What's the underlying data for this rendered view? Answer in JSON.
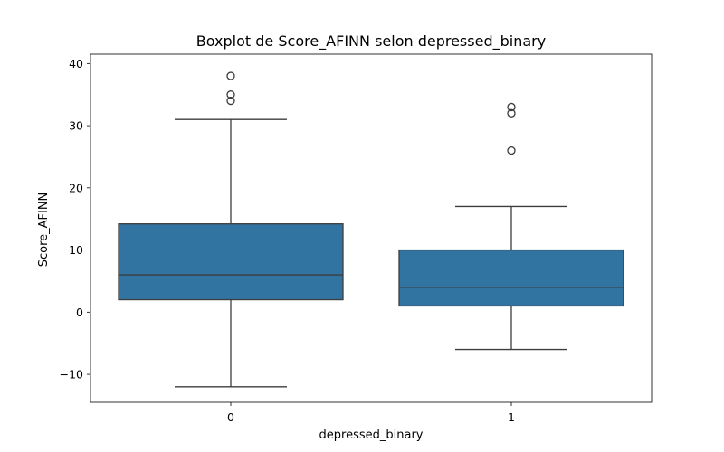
{
  "chart_data": {
    "type": "box",
    "title": "Boxplot de Score_AFINN selon depressed_binary",
    "xlabel": "depressed_binary",
    "ylabel": "Score_AFINN",
    "categories": [
      "0",
      "1"
    ],
    "ylim": [
      -14.5,
      41.5
    ],
    "yticks": [
      -10,
      0,
      10,
      20,
      30,
      40
    ],
    "ytick_labels": [
      "−10",
      "0",
      "10",
      "20",
      "30",
      "40"
    ],
    "grid": false,
    "box_color": "#3274a1",
    "line_color": "#3d3d3d",
    "boxes": [
      {
        "category": "0",
        "whisker_low": -12,
        "q1": 2,
        "median": 6,
        "q3": 14.2,
        "whisker_high": 31,
        "outliers": [
          34,
          35,
          38
        ]
      },
      {
        "category": "1",
        "whisker_low": -6,
        "q1": 1,
        "median": 4,
        "q3": 10,
        "whisker_high": 17,
        "outliers": [
          26,
          32,
          33
        ]
      }
    ]
  }
}
